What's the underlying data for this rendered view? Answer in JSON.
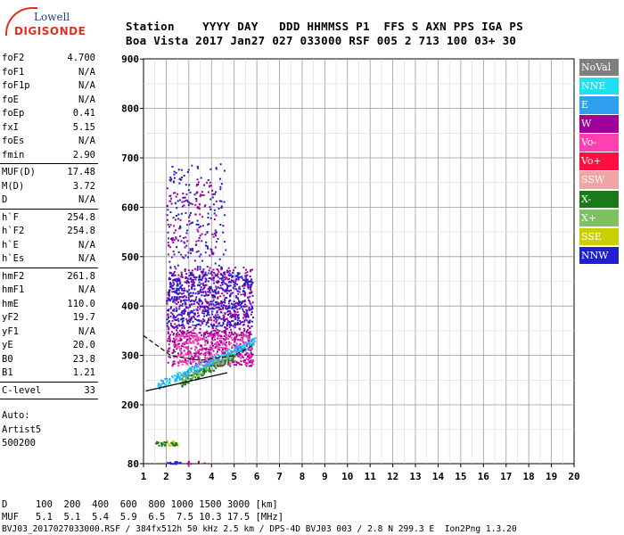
{
  "logo": {
    "line1": "Lowell",
    "line2": "DIGISONDE"
  },
  "header": {
    "line1": "Station    YYYY DAY   DDD HHMMSS P1  FFS S AXN PPS IGA PS",
    "line2": "Boa Vista 2017 Jan27 027 033000 RSF 005 2 713 100 03+ 30"
  },
  "params": {
    "group1": [
      {
        "label": "foF2",
        "value": "4.700"
      },
      {
        "label": "foF1",
        "value": "N/A"
      },
      {
        "label": "foF1p",
        "value": "N/A"
      },
      {
        "label": "foE",
        "value": "N/A"
      },
      {
        "label": "foEp",
        "value": "0.41"
      },
      {
        "label": "fxI",
        "value": "5.15"
      },
      {
        "label": "foEs",
        "value": "N/A"
      },
      {
        "label": "fmin",
        "value": "2.90"
      }
    ],
    "group2": [
      {
        "label": "MUF(D)",
        "value": "17.48"
      },
      {
        "label": "M(D)",
        "value": "3.72"
      },
      {
        "label": "D",
        "value": "N/A"
      }
    ],
    "group3": [
      {
        "label": "h`F",
        "value": "254.8"
      },
      {
        "label": "h`F2",
        "value": "254.8"
      },
      {
        "label": "h`E",
        "value": "N/A"
      },
      {
        "label": "h`Es",
        "value": "N/A"
      }
    ],
    "group4": [
      {
        "label": "hmF2",
        "value": "261.8"
      },
      {
        "label": "hmF1",
        "value": "N/A"
      },
      {
        "label": "hmE",
        "value": "110.0"
      },
      {
        "label": "yF2",
        "value": "19.7"
      },
      {
        "label": "yF1",
        "value": "N/A"
      },
      {
        "label": "yE",
        "value": "20.0"
      },
      {
        "label": "B0",
        "value": "23.8"
      },
      {
        "label": "B1",
        "value": "1.21"
      }
    ],
    "group5": [
      {
        "label": "C-level",
        "value": "33"
      }
    ],
    "auto": [
      "Auto:",
      "Artist5",
      "500200"
    ]
  },
  "footer": {
    "line1": "D     100  200  400  600  800 1000 1500 3000 [km]",
    "line2": "MUF   5.1  5.1  5.4  5.9  6.5  7.5 10.3 17.5 [MHz]",
    "line3": "BVJ03_2017027033000.RSF / 384fx512h 50 kHz 2.5 km / DPS-4D BVJ03 003 / 2.8 N 299.3 E  Ion2Png 1.3.20"
  },
  "legend": [
    {
      "label": "NoVal",
      "color": "#7f7f7f"
    },
    {
      "label": "NNE",
      "color": "#1ee0f0"
    },
    {
      "label": "E",
      "color": "#2f9ff0"
    },
    {
      "label": "W",
      "color": "#a0009a"
    },
    {
      "label": "Vo-",
      "color": "#ff40b0"
    },
    {
      "label": "Vo+",
      "color": "#ff1040"
    },
    {
      "label": "SSW",
      "color": "#f0a4a4"
    },
    {
      "label": "X-",
      "color": "#1a7a1a"
    },
    {
      "label": "X+",
      "color": "#7fc060"
    },
    {
      "label": "SSE",
      "color": "#c8d000"
    },
    {
      "label": "NNW",
      "color": "#2020d0"
    }
  ],
  "chart_data": {
    "type": "scatter",
    "xlim": [
      1,
      20
    ],
    "ylim": [
      80,
      900
    ],
    "x_ticks": [
      "1",
      "2",
      "3",
      "4",
      "5",
      "6",
      "7",
      "8",
      "9",
      "10",
      "11",
      "12",
      "13",
      "14",
      "15",
      "16",
      "17",
      "18",
      "19",
      "20"
    ],
    "y_ticks": [
      "80",
      "200",
      "300",
      "400",
      "500",
      "600",
      "700",
      "800",
      "900"
    ],
    "grid": true,
    "clusters": [
      {
        "name": "W",
        "color": "#a0009a",
        "x": [
          2.0,
          5.8
        ],
        "y": [
          340,
          480
        ],
        "n": 600
      },
      {
        "name": "NNW",
        "color": "#2020d0",
        "x": [
          2.0,
          5.8
        ],
        "y": [
          360,
          470
        ],
        "n": 500
      },
      {
        "name": "W",
        "color": "#a0009a",
        "x": [
          2.0,
          5.8
        ],
        "y": [
          280,
          350
        ],
        "n": 400
      },
      {
        "name": "Vo-",
        "color": "#ff40b0",
        "x": [
          2.3,
          5.8
        ],
        "y": [
          280,
          345
        ],
        "n": 250
      },
      {
        "name": "NNW",
        "color": "#2020d0",
        "x": [
          2.0,
          4.6
        ],
        "y": [
          470,
          690
        ],
        "n": 160
      },
      {
        "name": "W",
        "color": "#a0009a",
        "x": [
          2.0,
          4.2
        ],
        "y": [
          500,
          660
        ],
        "n": 120
      },
      {
        "name": "NNE",
        "color": "#1ee0f0",
        "x": [
          1.6,
          5.9
        ],
        "y": [
          240,
          330
        ],
        "n": 140,
        "band": true
      },
      {
        "name": "X-",
        "color": "#1a7a1a",
        "x": [
          2.6,
          5.0
        ],
        "y": [
          245,
          300
        ],
        "n": 120,
        "band": true
      },
      {
        "name": "X+",
        "color": "#7fc060",
        "x": [
          2.6,
          5.0
        ],
        "y": [
          250,
          305
        ],
        "n": 90,
        "band": true
      },
      {
        "name": "E",
        "color": "#2f9ff0",
        "x": [
          1.6,
          5.9
        ],
        "y": [
          240,
          330
        ],
        "n": 120,
        "band": true
      },
      {
        "name": "SSE",
        "color": "#c8d000",
        "x": [
          2.0,
          2.5
        ],
        "y": [
          118,
          128
        ],
        "n": 20
      },
      {
        "name": "X-",
        "color": "#1a7a1a",
        "x": [
          1.5,
          2.5
        ],
        "y": [
          118,
          126
        ],
        "n": 24
      },
      {
        "name": "NNW",
        "color": "#2020d0",
        "x": [
          2.0,
          2.6
        ],
        "y": [
          80,
          86
        ],
        "n": 16
      },
      {
        "name": "W",
        "color": "#a0009a",
        "x": [
          2.9,
          3.9
        ],
        "y": [
          80,
          86
        ],
        "n": 8
      }
    ],
    "trace_x": {
      "points": [
        [
          1.1,
          228
        ],
        [
          4.7,
          265
        ]
      ]
    },
    "trace_o": {
      "points": [
        [
          1.0,
          340
        ],
        [
          2.2,
          300
        ],
        [
          3.5,
          290
        ],
        [
          5.0,
          300
        ],
        [
          5.8,
          320
        ]
      ]
    }
  }
}
